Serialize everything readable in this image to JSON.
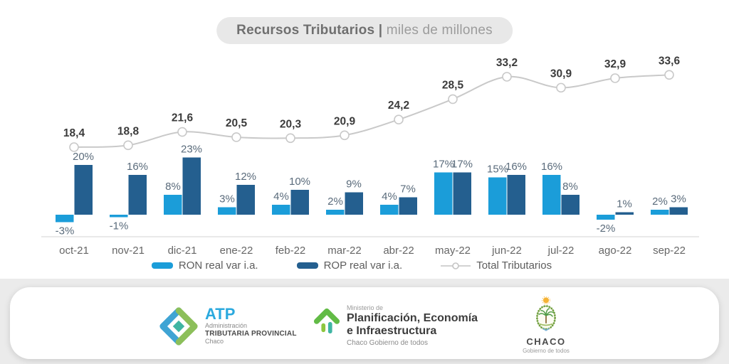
{
  "page": {
    "background_outer": "#ebebeb",
    "background_chart": "#ffffff"
  },
  "title": {
    "bold": "Recursos Tributarios |",
    "light": "miles de millones"
  },
  "chart_data": {
    "type": "bar",
    "title": "Recursos Tributarios | miles de millones",
    "xlabel": "",
    "ylabel": "",
    "grid": false,
    "legend_position": "bottom",
    "categories": [
      "oct-21",
      "nov-21",
      "dic-21",
      "ene-22",
      "feb-22",
      "mar-22",
      "abr-22",
      "may-22",
      "jun-22",
      "jul-22",
      "ago-22",
      "sep-22"
    ],
    "series": [
      {
        "name": "RON real var i.a.",
        "type": "bar",
        "color": "#1B9DD9",
        "values": [
          -3,
          -1,
          8,
          3,
          4,
          2,
          4,
          17,
          15,
          16,
          -2,
          2
        ],
        "labels": [
          "-3%",
          "-1%",
          "8%",
          "3%",
          "4%",
          "2%",
          "4%",
          "17%",
          "15%",
          "16%",
          "-2%",
          "2%"
        ]
      },
      {
        "name": "ROP real var i.a.",
        "type": "bar",
        "color": "#245F8F",
        "values": [
          20,
          16,
          23,
          12,
          10,
          9,
          7,
          17,
          16,
          8,
          1,
          3
        ],
        "labels": [
          "20%",
          "16%",
          "23%",
          "12%",
          "10%",
          "9%",
          "7%",
          "17%",
          "16%",
          "8%",
          "1%",
          "3%"
        ]
      },
      {
        "name": "Total Tributarios",
        "type": "line",
        "color": "#C9C9C9",
        "values": [
          18.4,
          18.8,
          21.6,
          20.5,
          20.3,
          20.9,
          24.2,
          28.5,
          33.2,
          30.9,
          32.9,
          33.6
        ],
        "labels": [
          "18,4",
          "18,8",
          "21,6",
          "20,5",
          "20,3",
          "20,9",
          "24,2",
          "28,5",
          "33,2",
          "30,9",
          "32,9",
          "33,6"
        ]
      }
    ],
    "style": {
      "pct_label_color": "#5A6B7B",
      "total_label_color": "#3B3B3B",
      "axis_label_color": "#666666",
      "axis_line_color": "#E2E2E2",
      "marker_fill": "#FFFFFF"
    }
  },
  "legend": {
    "ron": "RON real var i.a.",
    "rop": "ROP real var i.a.",
    "total": "Total Tributarios"
  },
  "footer": {
    "atp": {
      "acronym": "ATP",
      "line1": "Administración",
      "line2": "TRIBUTARIA PROVINCIAL",
      "line3": "Chaco"
    },
    "ministry": {
      "overline": "Ministerio de",
      "title1": "Planificación, Economía",
      "title2": "e Infraestructura",
      "subtitle": "Chaco Gobierno de todos"
    },
    "chaco": {
      "name": "CHACO",
      "subtitle": "Gobierno de todos"
    }
  }
}
